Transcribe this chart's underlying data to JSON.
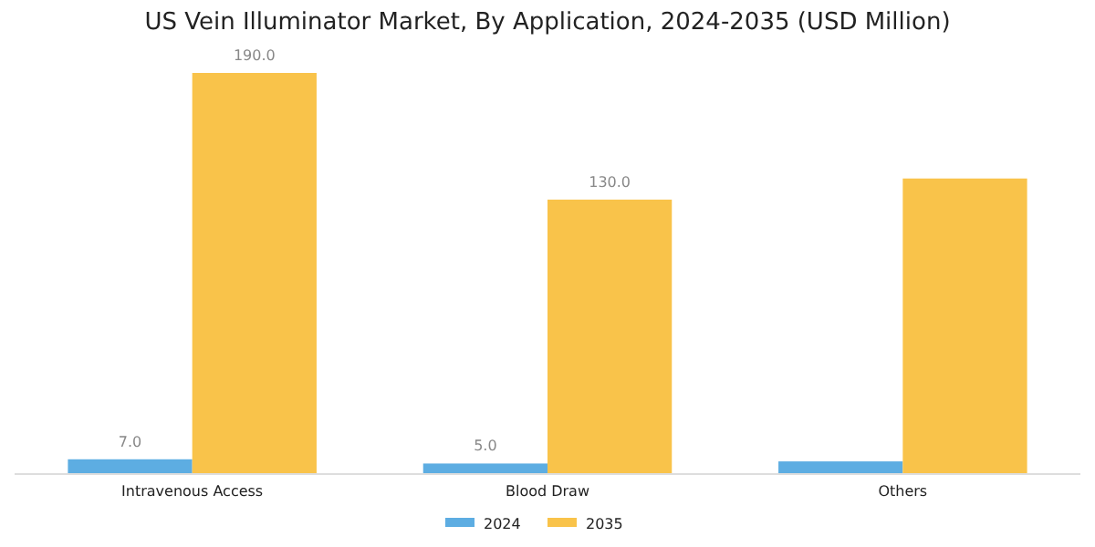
{
  "chart_data": {
    "type": "bar",
    "title": "US Vein Illuminator Market, By Application, 2024-2035 (USD Million)",
    "categories": [
      "Intravenous Access",
      "Blood Draw",
      "Others"
    ],
    "series": [
      {
        "name": "2024",
        "color": "#5dade2",
        "values": [
          7.0,
          5.0,
          6.0
        ],
        "value_labels": [
          "7.0",
          "5.0",
          null
        ]
      },
      {
        "name": "2035",
        "color": "#f9c34a",
        "values": [
          190.0,
          130.0,
          140.0
        ],
        "value_labels": [
          "190.0",
          "130.0",
          null
        ]
      }
    ],
    "legend": "bottom",
    "grid": false
  }
}
